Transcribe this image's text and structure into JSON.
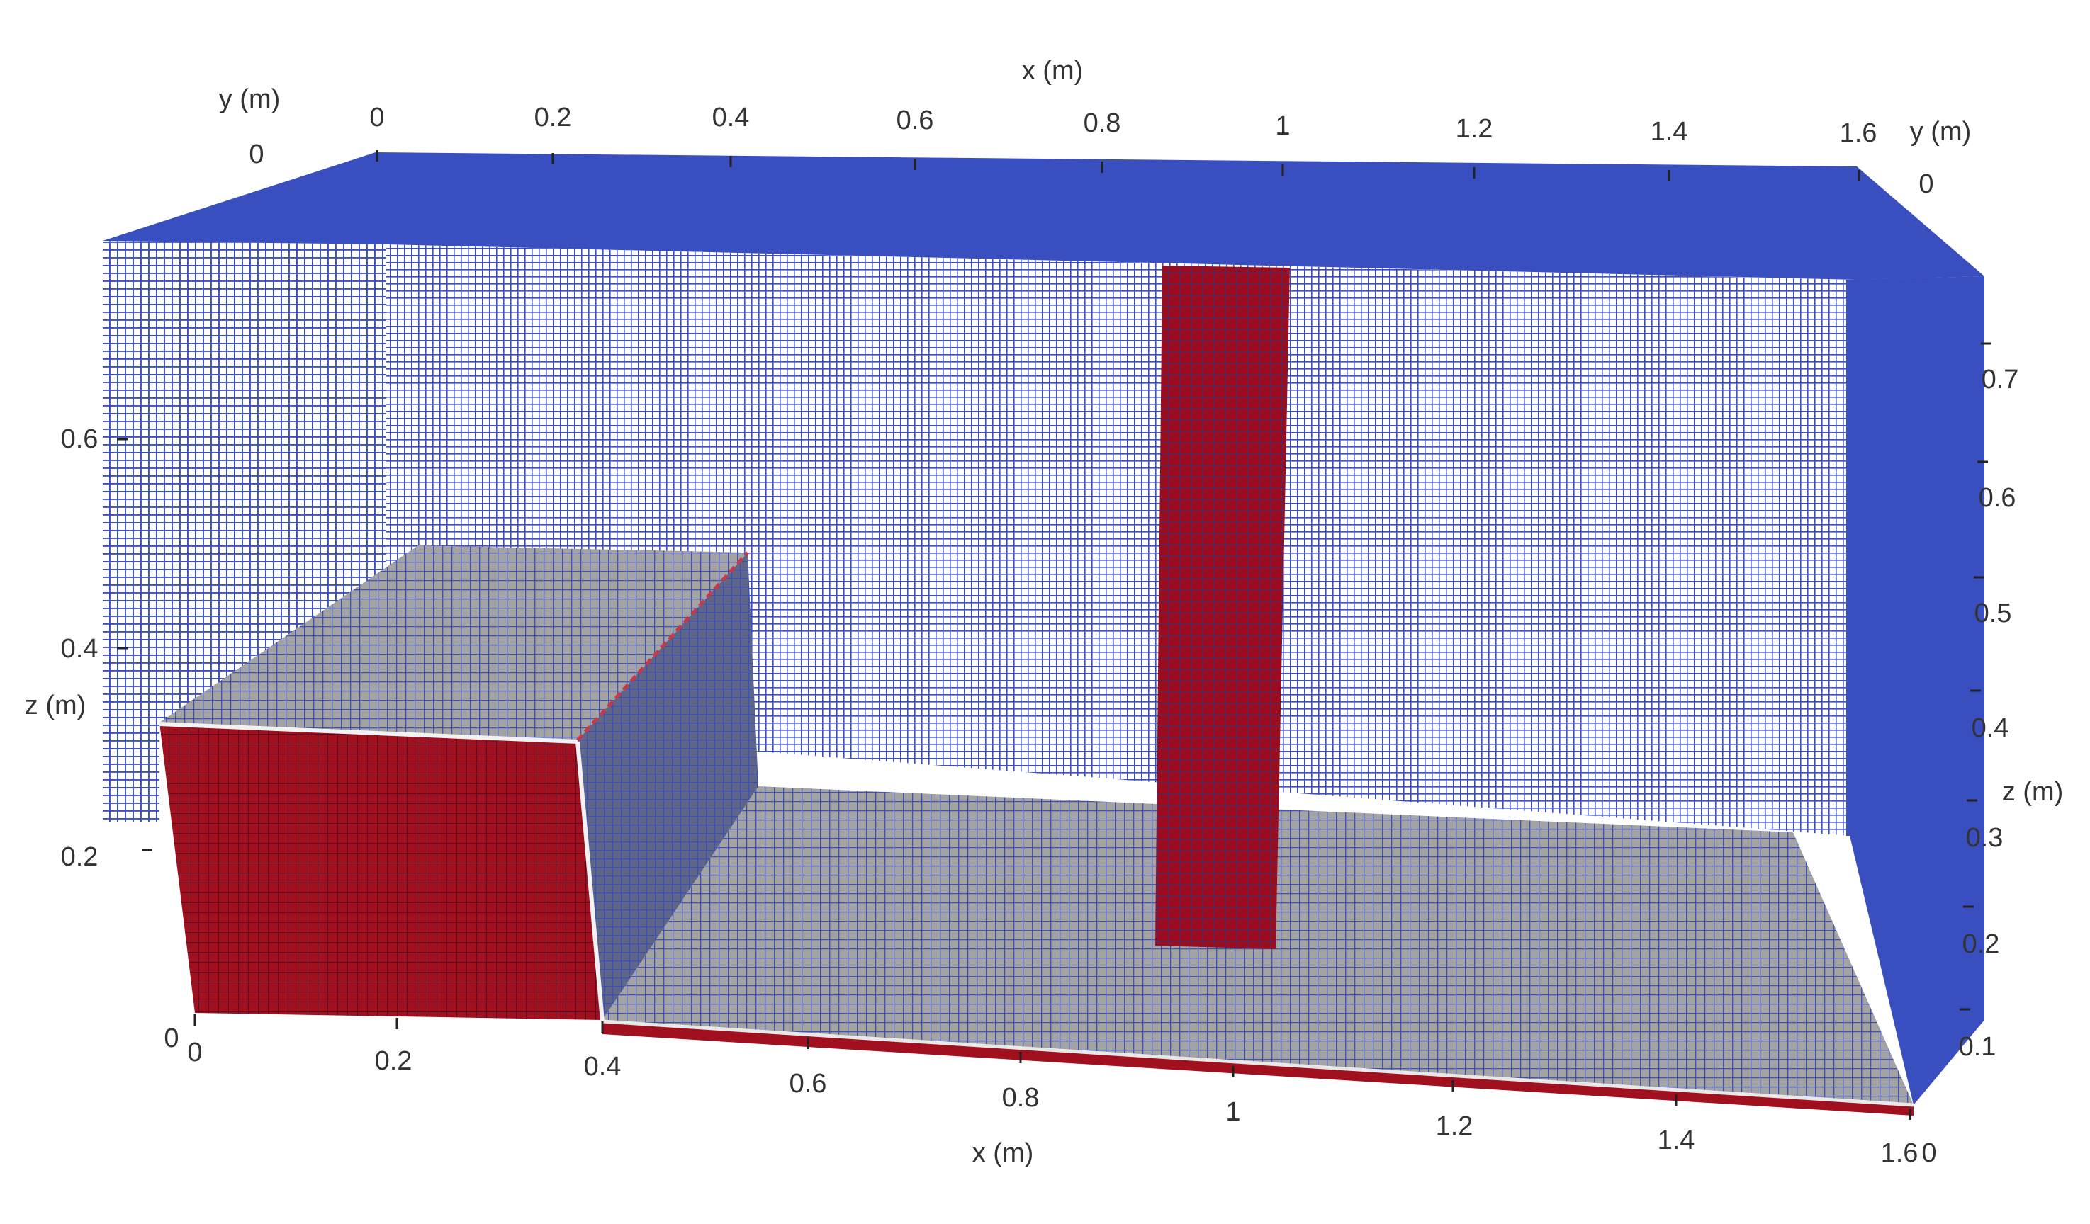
{
  "colors": {
    "background": "#ffffff",
    "air_wireframe": "#3a4fbf",
    "water_red": "#9a0d1f",
    "interface_grey": "#9a9a9a",
    "mesh_lines": "#3b4fc2",
    "label_text": "#333333"
  },
  "axes": {
    "x_top": {
      "title": "x (m)",
      "ticks": [
        "0",
        "0.2",
        "0.4",
        "0.6",
        "0.8",
        "1",
        "1.2",
        "1.4",
        "1.6"
      ]
    },
    "x_bottom": {
      "title": "x (m)",
      "ticks": [
        "0",
        "0.2",
        "0.4",
        "0.6",
        "0.8",
        "1",
        "1.2",
        "1.4",
        "1.6"
      ]
    },
    "y_left": {
      "title": "y (m)",
      "ticks": [
        "0"
      ]
    },
    "y_right": {
      "title": "y (m)",
      "ticks": [
        "0"
      ]
    },
    "z_left": {
      "title": "z (m)",
      "ticks": [
        "0",
        "0.2",
        "0.4",
        "0.6"
      ]
    },
    "z_right": {
      "title": "z (m)",
      "ticks": [
        "0",
        "0.1",
        "0.2",
        "0.3",
        "0.4",
        "0.5",
        "0.6",
        "0.7"
      ]
    }
  }
}
